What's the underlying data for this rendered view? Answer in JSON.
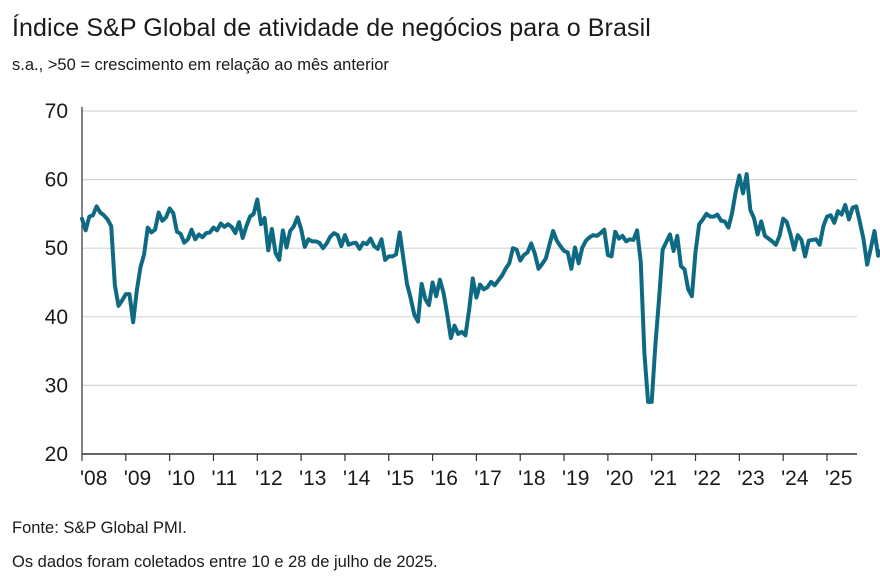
{
  "header": {
    "title": "Índice S&P Global de atividade de negócios para o Brasil",
    "subtitle": "s.a., >50 = crescimento em relação ao mês anterior"
  },
  "footer": {
    "source": "Fonte: S&P Global PMI.",
    "note": "Os dados foram coletados entre 10 e 28 de julho de 2025."
  },
  "colors": {
    "line": "#0e6a82",
    "grid": "#d6d6d6",
    "axis": "#333333"
  },
  "chart_data": {
    "type": "line",
    "title": "Índice S&P Global de atividade de negócios para o Brasil",
    "subtitle": "s.a., >50 = crescimento em relação ao mês anterior",
    "xlabel": "",
    "ylabel": "",
    "ylim": [
      20,
      70
    ],
    "yticks": [
      20,
      30,
      40,
      50,
      60,
      70
    ],
    "xlim": [
      "2008-01",
      "2025-07"
    ],
    "xticks": [
      {
        "date": "2008-01",
        "label": "'08"
      },
      {
        "date": "2009-01",
        "label": "'09"
      },
      {
        "date": "2010-01",
        "label": "'10"
      },
      {
        "date": "2011-01",
        "label": "'11"
      },
      {
        "date": "2012-01",
        "label": "'12"
      },
      {
        "date": "2013-01",
        "label": "'13"
      },
      {
        "date": "2014-01",
        "label": "'14"
      },
      {
        "date": "2015-01",
        "label": "'15"
      },
      {
        "date": "2016-01",
        "label": "'16"
      },
      {
        "date": "2017-01",
        "label": "'17"
      },
      {
        "date": "2018-01",
        "label": "'18"
      },
      {
        "date": "2019-01",
        "label": "'19"
      },
      {
        "date": "2020-01",
        "label": "'20"
      },
      {
        "date": "2021-01",
        "label": "'21"
      },
      {
        "date": "2022-01",
        "label": "'22"
      },
      {
        "date": "2023-01",
        "label": "'23"
      },
      {
        "date": "2024-01",
        "label": "'24"
      },
      {
        "date": "2025-01",
        "label": "'25"
      }
    ],
    "grid": "horizontal",
    "series": [
      {
        "values": [
          [
            "2008-01",
            54.3
          ],
          [
            "2008-02",
            52.6
          ],
          [
            "2008-03",
            54.6
          ],
          [
            "2008-04",
            54.8
          ],
          [
            "2008-05",
            56.1
          ],
          [
            "2008-06",
            55.2
          ],
          [
            "2008-07",
            54.8
          ],
          [
            "2008-08",
            54.2
          ],
          [
            "2008-09",
            53.2
          ],
          [
            "2008-10",
            44.6
          ],
          [
            "2008-11",
            41.6
          ],
          [
            "2008-12",
            42.4
          ],
          [
            "2009-01",
            43.3
          ],
          [
            "2009-02",
            43.3
          ],
          [
            "2009-03",
            39.2
          ],
          [
            "2009-04",
            43.8
          ],
          [
            "2009-05",
            47.2
          ],
          [
            "2009-06",
            49.1
          ],
          [
            "2009-07",
            53.0
          ],
          [
            "2009-08",
            52.3
          ],
          [
            "2009-09",
            52.7
          ],
          [
            "2009-10",
            55.2
          ],
          [
            "2009-11",
            54.0
          ],
          [
            "2009-12",
            54.5
          ],
          [
            "2010-01",
            55.8
          ],
          [
            "2010-02",
            55.1
          ],
          [
            "2010-03",
            52.4
          ],
          [
            "2010-04",
            52.1
          ],
          [
            "2010-05",
            50.8
          ],
          [
            "2010-06",
            51.3
          ],
          [
            "2010-07",
            52.7
          ],
          [
            "2010-08",
            51.3
          ],
          [
            "2010-09",
            52.0
          ],
          [
            "2010-10",
            51.6
          ],
          [
            "2010-11",
            52.2
          ],
          [
            "2010-12",
            52.3
          ],
          [
            "2011-01",
            53.0
          ],
          [
            "2011-02",
            52.6
          ],
          [
            "2011-03",
            53.6
          ],
          [
            "2011-04",
            53.1
          ],
          [
            "2011-05",
            53.5
          ],
          [
            "2011-06",
            53.1
          ],
          [
            "2011-07",
            52.2
          ],
          [
            "2011-08",
            53.8
          ],
          [
            "2011-09",
            51.5
          ],
          [
            "2011-10",
            53.2
          ],
          [
            "2011-11",
            54.6
          ],
          [
            "2011-12",
            55.0
          ],
          [
            "2012-01",
            57.1
          ],
          [
            "2012-02",
            53.5
          ],
          [
            "2012-03",
            54.4
          ],
          [
            "2012-04",
            49.7
          ],
          [
            "2012-05",
            52.8
          ],
          [
            "2012-06",
            49.3
          ],
          [
            "2012-07",
            48.3
          ],
          [
            "2012-08",
            52.6
          ],
          [
            "2012-09",
            50.1
          ],
          [
            "2012-10",
            52.5
          ],
          [
            "2012-11",
            53.2
          ],
          [
            "2012-12",
            54.5
          ],
          [
            "2013-01",
            52.8
          ],
          [
            "2013-02",
            50.2
          ],
          [
            "2013-03",
            51.3
          ],
          [
            "2013-04",
            51.0
          ],
          [
            "2013-05",
            51.0
          ],
          [
            "2013-06",
            50.8
          ],
          [
            "2013-07",
            50.0
          ],
          [
            "2013-08",
            50.7
          ],
          [
            "2013-09",
            51.7
          ],
          [
            "2013-10",
            52.2
          ],
          [
            "2013-11",
            51.9
          ],
          [
            "2013-12",
            50.3
          ],
          [
            "2014-01",
            51.9
          ],
          [
            "2014-02",
            50.5
          ],
          [
            "2014-03",
            50.7
          ],
          [
            "2014-04",
            50.8
          ],
          [
            "2014-05",
            49.9
          ],
          [
            "2014-06",
            50.8
          ],
          [
            "2014-07",
            50.6
          ],
          [
            "2014-08",
            51.4
          ],
          [
            "2014-09",
            50.3
          ],
          [
            "2014-10",
            49.9
          ],
          [
            "2014-11",
            51.3
          ],
          [
            "2014-12",
            48.3
          ],
          [
            "2015-01",
            48.8
          ],
          [
            "2015-02",
            48.8
          ],
          [
            "2015-03",
            49.1
          ],
          [
            "2015-04",
            52.3
          ],
          [
            "2015-05",
            48.5
          ],
          [
            "2015-06",
            44.8
          ],
          [
            "2015-07",
            42.7
          ],
          [
            "2015-08",
            40.3
          ],
          [
            "2015-09",
            39.3
          ],
          [
            "2015-10",
            44.8
          ],
          [
            "2015-11",
            42.6
          ],
          [
            "2015-12",
            41.7
          ],
          [
            "2016-01",
            45.0
          ],
          [
            "2016-02",
            43.0
          ],
          [
            "2016-03",
            45.4
          ],
          [
            "2016-04",
            43.5
          ],
          [
            "2016-05",
            40.4
          ],
          [
            "2016-06",
            36.9
          ],
          [
            "2016-07",
            38.7
          ],
          [
            "2016-08",
            37.5
          ],
          [
            "2016-09",
            37.8
          ],
          [
            "2016-10",
            37.3
          ],
          [
            "2016-11",
            41.0
          ],
          [
            "2016-12",
            45.6
          ],
          [
            "2017-01",
            42.8
          ],
          [
            "2017-02",
            44.7
          ],
          [
            "2017-03",
            44.0
          ],
          [
            "2017-04",
            44.3
          ],
          [
            "2017-05",
            45.1
          ],
          [
            "2017-06",
            44.6
          ],
          [
            "2017-07",
            45.3
          ],
          [
            "2017-08",
            46.0
          ],
          [
            "2017-09",
            47.0
          ],
          [
            "2017-10",
            47.8
          ],
          [
            "2017-11",
            50.0
          ],
          [
            "2017-12",
            49.8
          ],
          [
            "2018-01",
            48.2
          ],
          [
            "2018-02",
            49.0
          ],
          [
            "2018-03",
            49.4
          ],
          [
            "2018-04",
            50.7
          ],
          [
            "2018-05",
            49.2
          ],
          [
            "2018-06",
            47.0
          ],
          [
            "2018-07",
            47.7
          ],
          [
            "2018-08",
            48.5
          ],
          [
            "2018-09",
            50.5
          ],
          [
            "2018-10",
            52.5
          ],
          [
            "2018-11",
            51.1
          ],
          [
            "2018-12",
            50.3
          ],
          [
            "2019-01",
            49.6
          ],
          [
            "2019-02",
            49.4
          ],
          [
            "2019-03",
            47.0
          ],
          [
            "2019-04",
            50.1
          ],
          [
            "2019-05",
            47.8
          ],
          [
            "2019-06",
            50.1
          ],
          [
            "2019-07",
            51.1
          ],
          [
            "2019-08",
            51.6
          ],
          [
            "2019-09",
            51.9
          ],
          [
            "2019-10",
            51.8
          ],
          [
            "2019-11",
            52.2
          ],
          [
            "2019-12",
            52.7
          ],
          [
            "2020-01",
            49.0
          ],
          [
            "2020-02",
            48.8
          ],
          [
            "2020-03",
            52.4
          ],
          [
            "2020-04",
            51.4
          ],
          [
            "2020-05",
            51.8
          ],
          [
            "2020-06",
            51.0
          ],
          [
            "2020-07",
            51.3
          ],
          [
            "2020-08",
            51.2
          ],
          [
            "2020-09",
            52.6
          ],
          [
            "2020-10",
            48.0
          ],
          [
            "2020-11",
            34.7
          ],
          [
            "2020-12",
            27.6
          ],
          [
            "2021-01",
            27.6
          ],
          [
            "2021-02",
            35.9
          ],
          [
            "2021-03",
            42.5
          ],
          [
            "2021-04",
            49.8
          ],
          [
            "2021-05",
            50.9
          ],
          [
            "2021-06",
            52.0
          ],
          [
            "2021-07",
            49.6
          ],
          [
            "2021-08",
            51.8
          ],
          [
            "2021-09",
            47.4
          ],
          [
            "2021-10",
            46.9
          ],
          [
            "2021-11",
            44.0
          ],
          [
            "2021-12",
            43.0
          ],
          [
            "2022-01",
            49.5
          ],
          [
            "2022-02",
            53.5
          ],
          [
            "2022-03",
            54.2
          ],
          [
            "2022-04",
            55.0
          ],
          [
            "2022-05",
            54.6
          ],
          [
            "2022-06",
            54.6
          ],
          [
            "2022-07",
            54.9
          ],
          [
            "2022-08",
            54.0
          ],
          [
            "2022-09",
            53.9
          ],
          [
            "2022-10",
            53.0
          ],
          [
            "2022-11",
            55.1
          ],
          [
            "2022-12",
            58.2
          ],
          [
            "2023-01",
            60.6
          ],
          [
            "2023-02",
            58.0
          ],
          [
            "2023-03",
            60.8
          ],
          [
            "2023-04",
            55.6
          ],
          [
            "2023-05",
            54.4
          ],
          [
            "2023-06",
            52.0
          ],
          [
            "2023-07",
            53.9
          ],
          [
            "2023-08",
            51.8
          ],
          [
            "2023-09",
            51.4
          ],
          [
            "2023-10",
            51.0
          ],
          [
            "2023-11",
            50.5
          ],
          [
            "2023-12",
            51.8
          ],
          [
            "2024-01",
            54.3
          ],
          [
            "2024-02",
            53.8
          ],
          [
            "2024-03",
            52.0
          ],
          [
            "2024-04",
            49.8
          ],
          [
            "2024-05",
            51.9
          ],
          [
            "2024-06",
            51.2
          ],
          [
            "2024-07",
            48.8
          ],
          [
            "2024-08",
            51.1
          ],
          [
            "2024-09",
            51.2
          ],
          [
            "2024-10",
            51.3
          ],
          [
            "2024-11",
            50.5
          ],
          [
            "2024-12",
            53.2
          ],
          [
            "2025-01",
            54.6
          ],
          [
            "2025-02",
            54.8
          ],
          [
            "2025-03",
            53.7
          ],
          [
            "2025-04",
            55.4
          ],
          [
            "2025-05",
            54.9
          ],
          [
            "2025-06",
            56.3
          ],
          [
            "2025-07",
            54.2
          ],
          [
            "2025-08",
            55.9
          ],
          [
            "2025-09",
            56.1
          ],
          [
            "2025-10",
            53.8
          ],
          [
            "2025-11",
            51.3
          ],
          [
            "2025-12",
            47.6
          ],
          [
            "2026-01",
            50.0
          ],
          [
            "2026-02",
            52.5
          ],
          [
            "2026-03",
            48.9
          ],
          [
            "2026-04",
            49.8
          ],
          [
            "2026-05",
            49.3
          ],
          [
            "2026-06",
            46.3
          ]
        ]
      }
    ]
  }
}
